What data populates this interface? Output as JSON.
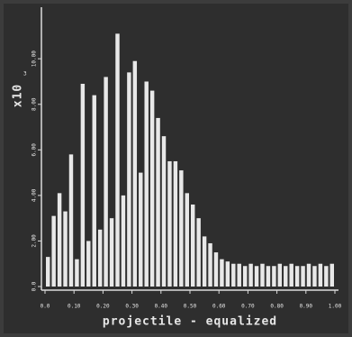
{
  "chart_data": {
    "type": "histogram",
    "xlabel": "projectile - equalized",
    "ylabel": "x10",
    "ylabel_exponent": "3",
    "bins": [
      0,
      0.02,
      0.04,
      0.06,
      0.08,
      0.1,
      0.12,
      0.14,
      0.16,
      0.18,
      0.2,
      0.22,
      0.24,
      0.26,
      0.28,
      0.3,
      0.32,
      0.34,
      0.36,
      0.38,
      0.4,
      0.42,
      0.44,
      0.46,
      0.48,
      0.5,
      0.52,
      0.54,
      0.56,
      0.58,
      0.6,
      0.62,
      0.64,
      0.66,
      0.68,
      0.7,
      0.72,
      0.74,
      0.76,
      0.78,
      0.8,
      0.82,
      0.84,
      0.86,
      0.88,
      0.9,
      0.92,
      0.94,
      0.96,
      0.98,
      1.0
    ],
    "values": [
      1.3,
      3.1,
      4.1,
      3.3,
      5.8,
      1.2,
      8.9,
      2.0,
      8.4,
      2.5,
      9.2,
      3.0,
      11.1,
      4.0,
      9.4,
      9.9,
      5.0,
      9.0,
      8.6,
      7.4,
      6.6,
      5.5,
      5.5,
      5.1,
      4.1,
      3.6,
      3.0,
      2.2,
      1.9,
      1.5,
      1.2,
      1.1,
      1.0,
      1.0,
      0.9,
      1.0,
      0.9,
      1.0,
      0.9,
      0.9,
      1.0,
      0.9,
      1.0,
      0.9,
      0.9,
      1.0,
      0.9,
      1.0,
      0.9,
      1.0
    ],
    "color": "#e8e8e8",
    "xlim": [
      0,
      1.0
    ],
    "ylim": [
      0,
      12.5
    ],
    "xticks": [
      {
        "value": 0,
        "label": "0.0"
      },
      {
        "value": 0.1,
        "label": "0.10"
      },
      {
        "value": 0.2,
        "label": "0.20"
      },
      {
        "value": 0.3,
        "label": "0.30"
      },
      {
        "value": 0.4,
        "label": "0.40"
      },
      {
        "value": 0.5,
        "label": "0.50"
      },
      {
        "value": 0.6,
        "label": "0.60"
      },
      {
        "value": 0.7,
        "label": "0.70"
      },
      {
        "value": 0.8,
        "label": "0.80"
      },
      {
        "value": 0.9,
        "label": "0.90"
      },
      {
        "value": 1.0,
        "label": "1.00"
      }
    ],
    "yticks": [
      {
        "value": 0,
        "label": "0.0"
      },
      {
        "value": 2,
        "label": "2.00"
      },
      {
        "value": 4,
        "label": "4.00"
      },
      {
        "value": 6,
        "label": "6.00"
      },
      {
        "value": 8,
        "label": "8.00"
      },
      {
        "value": 10,
        "label": "10.00"
      }
    ]
  }
}
